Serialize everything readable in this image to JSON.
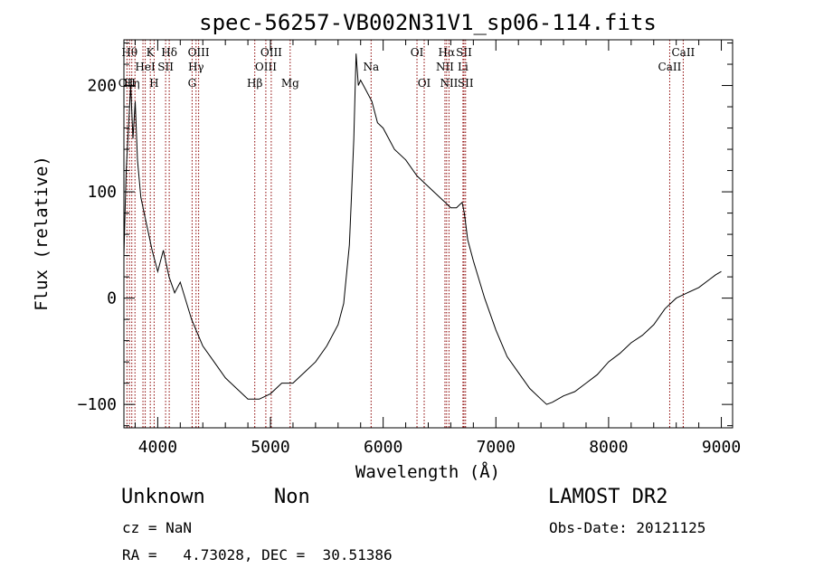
{
  "chart_data": {
    "type": "line",
    "title": "spec-56257-VB002N31V1_sp06-114.fits",
    "xlabel": "Wavelength (Å)",
    "ylabel": "Flux (relative)",
    "xlim": [
      3700,
      9100
    ],
    "ylim": [
      -122,
      243
    ],
    "xticks": [
      4000,
      5000,
      6000,
      7000,
      8000,
      9000
    ],
    "yticks": [
      -100,
      0,
      100,
      200
    ],
    "grid": false,
    "line_color": "#000000",
    "marker_line_color": "#8b0000",
    "series": [
      {
        "x": [
          3700,
          3720,
          3740,
          3760,
          3780,
          3800,
          3820,
          3850,
          3900,
          3950,
          4000,
          4050,
          4100,
          4150,
          4200,
          4300,
          4400,
          4500,
          4600,
          4700,
          4800,
          4900,
          5000,
          5100,
          5200,
          5300,
          5400,
          5500,
          5600,
          5650,
          5700,
          5720,
          5740,
          5760,
          5780,
          5800,
          5850,
          5900,
          5950,
          6000,
          6100,
          6200,
          6300,
          6400,
          6500,
          6550,
          6600,
          6650,
          6700,
          6720,
          6750,
          6800,
          6900,
          7000,
          7100,
          7200,
          7300,
          7400,
          7450,
          7500,
          7600,
          7700,
          7800,
          7900,
          8000,
          8100,
          8200,
          8300,
          8400,
          8500,
          8600,
          8700,
          8800,
          8900,
          8950,
          9000
        ],
        "y": [
          40,
          120,
          160,
          200,
          150,
          185,
          130,
          95,
          70,
          45,
          25,
          45,
          20,
          5,
          15,
          -20,
          -45,
          -60,
          -75,
          -85,
          -95,
          -95,
          -90,
          -80,
          -80,
          -70,
          -60,
          -45,
          -25,
          -5,
          50,
          100,
          150,
          230,
          200,
          205,
          195,
          185,
          165,
          160,
          140,
          130,
          115,
          105,
          95,
          90,
          85,
          85,
          90,
          80,
          55,
          35,
          0,
          -30,
          -55,
          -70,
          -85,
          -95,
          -100,
          -98,
          -92,
          -88,
          -80,
          -72,
          -60,
          -52,
          -42,
          -35,
          -25,
          -10,
          0,
          5,
          10,
          18,
          22,
          25
        ]
      }
    ],
    "line_markers": [
      {
        "w": 3750,
        "label": "Hθ",
        "row": 1
      },
      {
        "w": 3727,
        "label": "OII",
        "row": 3
      },
      {
        "w": 3770,
        "label": "Hη",
        "row": 3
      },
      {
        "w": 3798,
        "label": "",
        "row": 0
      },
      {
        "w": 3869,
        "label": "",
        "row": 0
      },
      {
        "w": 3934,
        "label": "K",
        "row": 1
      },
      {
        "w": 3968,
        "label": "H",
        "row": 3
      },
      {
        "w": 3889,
        "label": "HeI",
        "row": 2
      },
      {
        "w": 4070,
        "label": "SII",
        "row": 2
      },
      {
        "w": 4102,
        "label": "Hδ",
        "row": 1
      },
      {
        "w": 4305,
        "label": "G",
        "row": 3
      },
      {
        "w": 4340,
        "label": "Hγ",
        "row": 2
      },
      {
        "w": 4363,
        "label": "OIII",
        "row": 1
      },
      {
        "w": 4861,
        "label": "Hβ",
        "row": 3
      },
      {
        "w": 4959,
        "label": "OIII",
        "row": 2
      },
      {
        "w": 5007,
        "label": "OIII",
        "row": 1
      },
      {
        "w": 5175,
        "label": "Mg",
        "row": 3
      },
      {
        "w": 5893,
        "label": "Na",
        "row": 2
      },
      {
        "w": 6300,
        "label": "OI",
        "row": 1
      },
      {
        "w": 6364,
        "label": "OI",
        "row": 3
      },
      {
        "w": 6548,
        "label": "NII",
        "row": 2
      },
      {
        "w": 6563,
        "label": "Hα",
        "row": 1
      },
      {
        "w": 6584,
        "label": "NII",
        "row": 3
      },
      {
        "w": 6708,
        "label": "Li",
        "row": 2
      },
      {
        "w": 6717,
        "label": "SII",
        "row": 1
      },
      {
        "w": 6731,
        "label": "SII",
        "row": 3
      },
      {
        "w": 8542,
        "label": "CaII",
        "row": 2
      },
      {
        "w": 8662,
        "label": "CaII",
        "row": 1
      }
    ]
  },
  "footer": {
    "class_label": "Unknown",
    "subclass_label": "Non",
    "survey_label": "LAMOST DR2",
    "cz_text": "cz = NaN",
    "obs_date_text": "Obs-Date: 20121125",
    "radec_text": "RA =   4.73028, DEC =  30.51386"
  }
}
